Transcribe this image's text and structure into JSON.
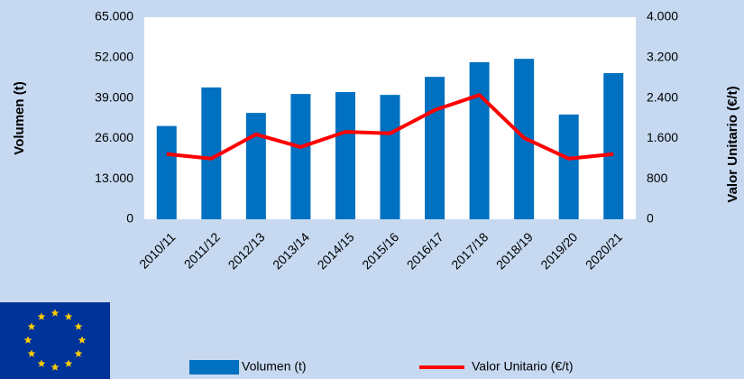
{
  "chart_data": {
    "type": "bar-line",
    "categories": [
      "2010/11",
      "2011/12",
      "2012/13",
      "2013/14",
      "2014/15",
      "2015/16",
      "2016/17",
      "2017/18",
      "2018/19",
      "2019/20",
      "2020/21"
    ],
    "series": [
      {
        "name": "Volumen (t)",
        "color": "#0070c0",
        "type": "bar",
        "values": [
          30000,
          42400,
          34200,
          40300,
          40900,
          40000,
          45800,
          50500,
          51600,
          33700,
          47000
        ]
      },
      {
        "name": "Valor Unitario (€/t)",
        "color": "#ff0000",
        "type": "line",
        "axis": "y2",
        "values": [
          1290,
          1200,
          1680,
          1430,
          1730,
          1700,
          2160,
          2460,
          1610,
          1200,
          1290
        ]
      }
    ],
    "ylabel": "Volumen (t)",
    "y2label": "Valor Unitario (€/t)",
    "ylim": [
      0,
      65000
    ],
    "yticks": [
      0,
      {
        "value": 13000,
        "label": "13.000"
      },
      {
        "value": 26000,
        "label": "26.000"
      },
      {
        "value": 39000,
        "label": "39.000"
      },
      {
        "value": 52000,
        "label": "52.000"
      },
      {
        "value": 65000,
        "label": "65.000"
      }
    ],
    "y2lim": [
      0,
      4000
    ],
    "y2ticks": [
      0,
      800,
      {
        "value": 1600,
        "label": "1.600"
      },
      {
        "value": 2400,
        "label": "2.400"
      },
      {
        "value": 3200,
        "label": "3.200"
      },
      {
        "value": 4000,
        "label": "4.000"
      }
    ],
    "legend": "bottom"
  }
}
